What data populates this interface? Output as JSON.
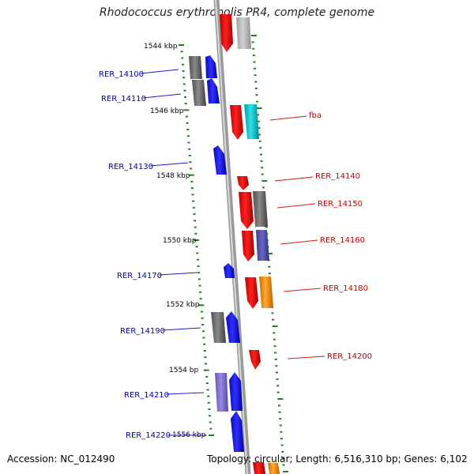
{
  "title": "Rhodococcus erythropolis PR4, complete genome",
  "footer": {
    "accession": "Accession: NC_012490",
    "summary": "Topology: circular; Length: 6,516,310 bp; Genes: 6,102"
  },
  "ticks": [
    {
      "label": "1544 kbp"
    },
    {
      "label": "1546 kbp"
    },
    {
      "label": "1548 kbp"
    },
    {
      "label": "1550 kbp"
    },
    {
      "label": "1552 kbp"
    },
    {
      "label": "1554 bp"
    },
    {
      "label": "1556 kbp"
    }
  ],
  "left_labels": [
    "RER_14100",
    "RER_14110",
    "RER_14130",
    "RER_14170",
    "RER_14190",
    "RER_14210",
    "RER_14220"
  ],
  "right_labels": [
    "fba",
    "RER_14140",
    "RER_14150",
    "RER_14160",
    "RER_14180",
    "RER_14200"
  ],
  "colors": {
    "forward_gene": "#1010e8",
    "reverse_gene": "#e81010",
    "pseudo_gray": "#707070",
    "light_gray": "#b8b8b8",
    "cyan": "#10c0c8",
    "purple": "#5050a8",
    "lavender": "#8070c8",
    "orange": "#f09010",
    "left_label": "#0000b0",
    "right_label": "#c00000",
    "tick_dash": "#208020",
    "backbone": "#909090"
  }
}
